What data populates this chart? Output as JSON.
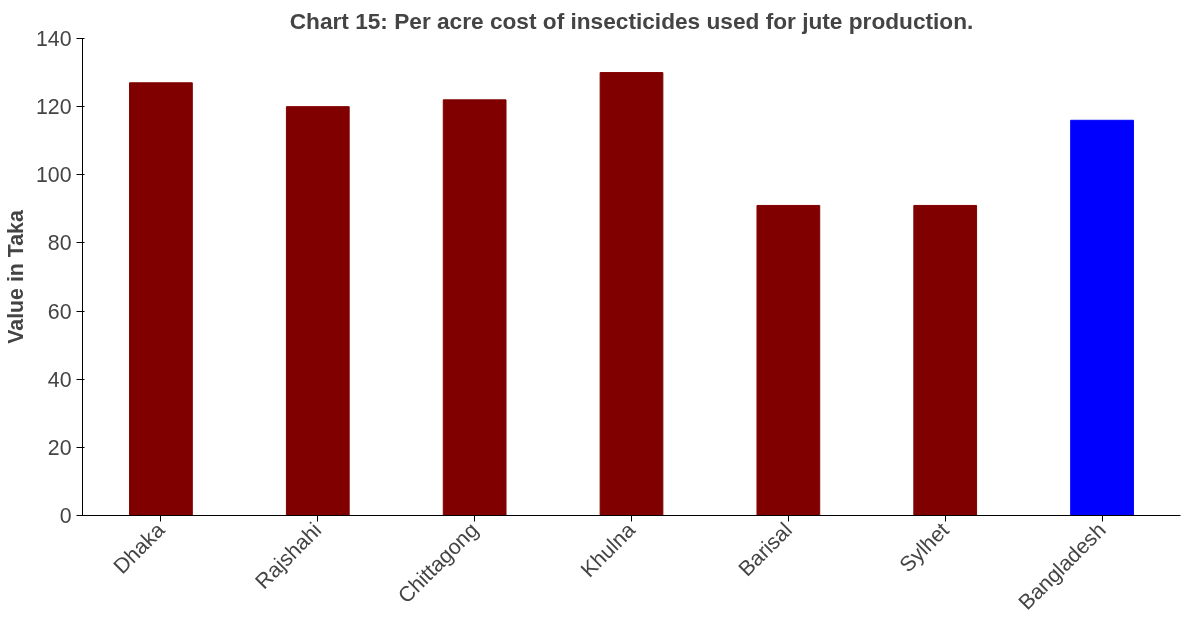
{
  "chart_data": {
    "type": "bar",
    "title": "Chart 15: Per acre cost of insecticides used for jute production.",
    "ylabel": "Value in Taka",
    "categories": [
      "Dhaka",
      "Rajshahi",
      "Chittagong",
      "Khulna",
      "Barisal",
      "Sylhet",
      "Bangladesh"
    ],
    "values": [
      127,
      120,
      122,
      130,
      91,
      91,
      116
    ],
    "colors": [
      "#800000",
      "#800000",
      "#800000",
      "#800000",
      "#800000",
      "#800000",
      "#0000ff"
    ],
    "ylim": [
      0,
      140
    ],
    "yticks": [
      0,
      20,
      40,
      60,
      80,
      100,
      120,
      140
    ],
    "grid": false
  }
}
